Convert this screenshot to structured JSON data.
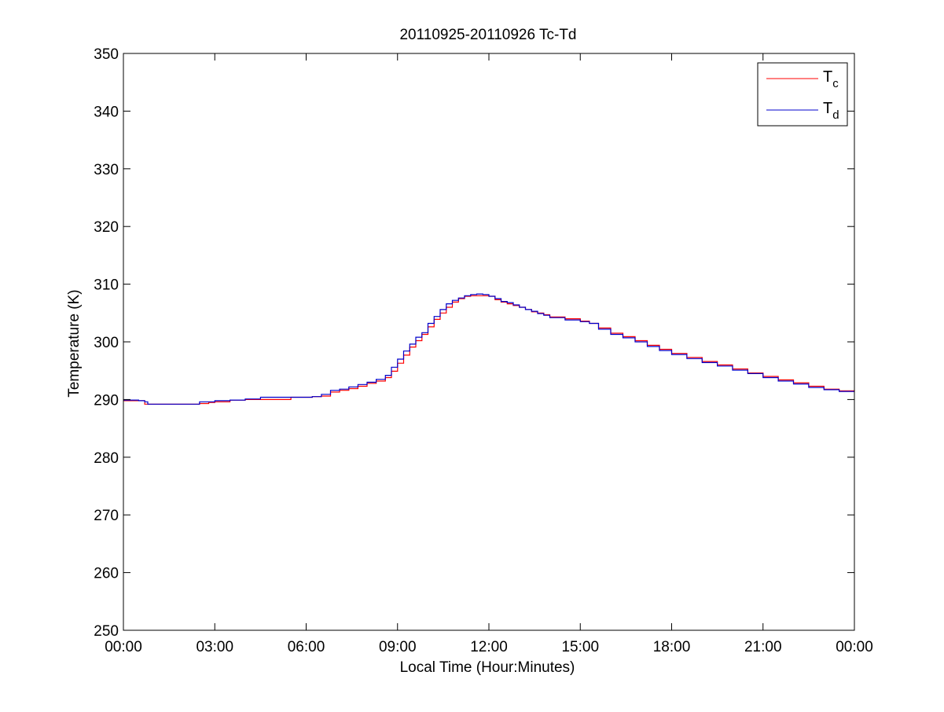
{
  "chart_data": {
    "type": "line",
    "title": "20110925-20110926 Tc-Td",
    "xlabel": "Local Time (Hour:Minutes)",
    "ylabel": "Temperature (K)",
    "xlim": [
      0,
      24
    ],
    "ylim": [
      250,
      350
    ],
    "x_tick_values": [
      0,
      3,
      6,
      9,
      12,
      15,
      18,
      21,
      24
    ],
    "x_tick_labels": [
      "00:00",
      "03:00",
      "06:00",
      "09:00",
      "12:00",
      "15:00",
      "18:00",
      "21:00",
      "00:00"
    ],
    "y_tick_values": [
      250,
      260,
      270,
      280,
      290,
      300,
      310,
      320,
      330,
      340,
      350
    ],
    "y_tick_labels": [
      "250",
      "260",
      "270",
      "280",
      "290",
      "300",
      "310",
      "320",
      "330",
      "340",
      "350"
    ],
    "grid": false,
    "legend_position": "top-right",
    "series": [
      {
        "name_main": "T",
        "name_sub": "c",
        "color": "#ff0000",
        "x": [
          0,
          0.5,
          0.7,
          0.8,
          1.0,
          1.5,
          2.0,
          2.5,
          2.8,
          3.0,
          3.5,
          4.0,
          4.5,
          5.0,
          5.5,
          5.9,
          6.2,
          6.5,
          6.8,
          7.1,
          7.4,
          7.7,
          8.0,
          8.3,
          8.6,
          8.8,
          9.0,
          9.2,
          9.4,
          9.6,
          9.8,
          10.0,
          10.2,
          10.4,
          10.6,
          10.8,
          11.0,
          11.2,
          11.4,
          11.6,
          11.8,
          12.0,
          12.2,
          12.4,
          12.6,
          12.8,
          13.0,
          13.2,
          13.4,
          13.6,
          13.8,
          14.0,
          14.5,
          15.0,
          15.3,
          15.6,
          16.0,
          16.4,
          16.8,
          17.2,
          17.6,
          18.0,
          18.5,
          19.0,
          19.5,
          20.0,
          20.5,
          21.0,
          21.5,
          22.0,
          22.5,
          23.0,
          23.5,
          24.0
        ],
        "values": [
          289.8,
          289.8,
          289.2,
          289.2,
          289.2,
          289.2,
          289.2,
          289.3,
          289.5,
          289.6,
          289.9,
          290.0,
          290.0,
          290.0,
          290.4,
          290.4,
          290.5,
          290.6,
          291.3,
          291.6,
          291.9,
          292.3,
          292.8,
          293.2,
          293.8,
          294.9,
          296.3,
          297.7,
          299.1,
          300.2,
          301.3,
          302.6,
          303.9,
          305.0,
          306.0,
          306.9,
          307.5,
          307.9,
          308.0,
          308.0,
          308.0,
          307.9,
          307.3,
          306.9,
          306.6,
          306.3,
          306.0,
          305.6,
          305.2,
          305.0,
          304.7,
          304.3,
          304.0,
          303.6,
          303.2,
          302.4,
          301.5,
          300.9,
          300.2,
          299.4,
          298.7,
          298.0,
          297.3,
          296.6,
          296.0,
          295.3,
          294.6,
          294.0,
          293.4,
          292.9,
          292.3,
          291.8,
          291.5,
          291.4
        ]
      },
      {
        "name_main": "T",
        "name_sub": "d",
        "color": "#0000cc",
        "x": [
          0,
          0.5,
          0.7,
          0.8,
          1.0,
          1.5,
          2.0,
          2.5,
          2.8,
          3.0,
          3.5,
          4.0,
          4.5,
          5.0,
          5.5,
          5.9,
          6.2,
          6.5,
          6.8,
          7.1,
          7.4,
          7.7,
          8.0,
          8.3,
          8.6,
          8.8,
          9.0,
          9.2,
          9.4,
          9.6,
          9.8,
          10.0,
          10.2,
          10.4,
          10.6,
          10.8,
          11.0,
          11.2,
          11.4,
          11.6,
          11.8,
          12.0,
          12.2,
          12.4,
          12.6,
          12.8,
          13.0,
          13.2,
          13.4,
          13.6,
          13.8,
          14.0,
          14.5,
          15.0,
          15.3,
          15.6,
          16.0,
          16.4,
          16.8,
          17.2,
          17.6,
          18.0,
          18.5,
          19.0,
          19.5,
          20.0,
          20.5,
          21.0,
          21.5,
          22.0,
          22.5,
          23.0,
          23.5,
          24.0
        ],
        "values": [
          289.9,
          289.8,
          289.6,
          289.2,
          289.2,
          289.2,
          289.2,
          289.6,
          289.6,
          289.8,
          289.9,
          290.1,
          290.4,
          290.4,
          290.4,
          290.4,
          290.5,
          290.9,
          291.6,
          291.8,
          292.2,
          292.6,
          293.0,
          293.5,
          294.2,
          295.6,
          297.0,
          298.4,
          299.6,
          300.8,
          301.6,
          303.2,
          304.4,
          305.6,
          306.6,
          307.2,
          307.6,
          308.0,
          308.2,
          308.3,
          308.2,
          307.9,
          307.5,
          307.0,
          306.8,
          306.4,
          306.0,
          305.6,
          305.3,
          304.9,
          304.6,
          304.2,
          303.8,
          303.5,
          303.2,
          302.2,
          301.3,
          300.7,
          300.0,
          299.2,
          298.5,
          297.8,
          297.1,
          296.4,
          295.8,
          295.1,
          294.5,
          293.8,
          293.2,
          292.7,
          292.1,
          291.7,
          291.4,
          291.4
        ]
      }
    ]
  }
}
